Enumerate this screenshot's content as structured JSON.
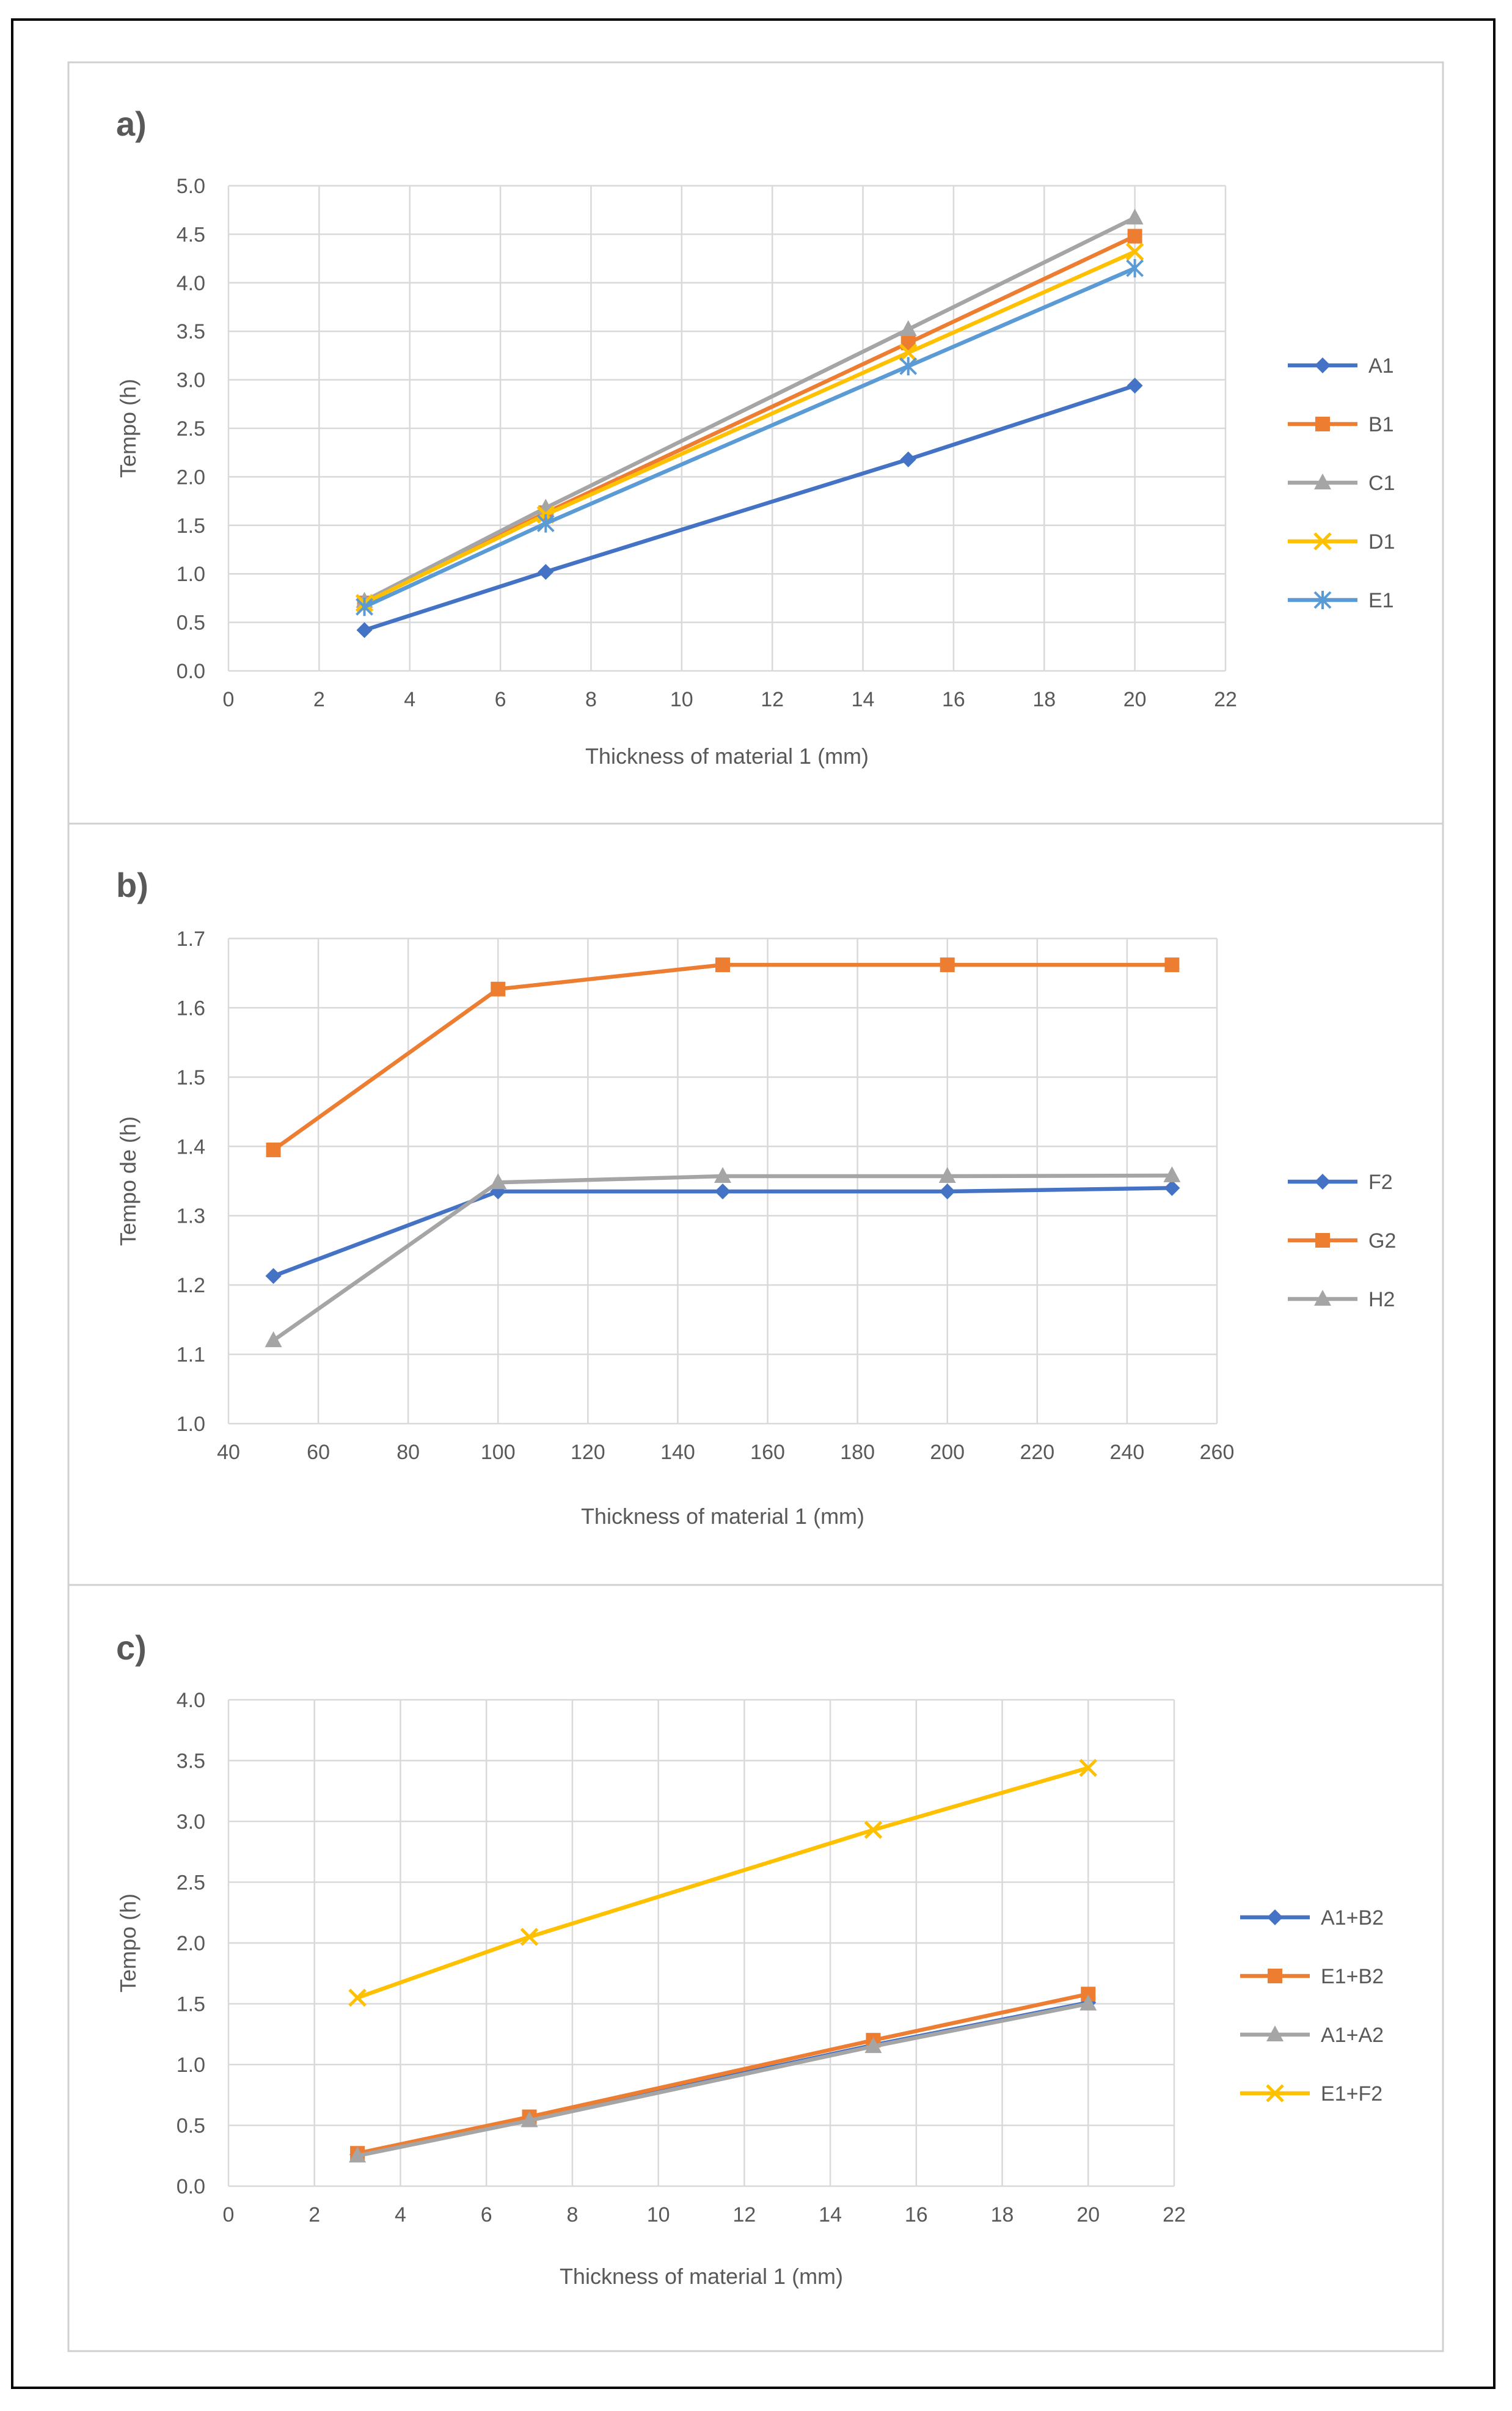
{
  "chart_data": [
    {
      "panel": "a)",
      "type": "line",
      "title": "",
      "xlabel": "Thickness of material 1 (mm)",
      "ylabel": "Tempo (h)",
      "xlim": [
        0,
        22
      ],
      "ylim": [
        0,
        5
      ],
      "xticks": [
        0,
        2,
        4,
        6,
        8,
        10,
        12,
        14,
        16,
        18,
        20,
        22
      ],
      "yticks": [
        0.0,
        0.5,
        1.0,
        1.5,
        2.0,
        2.5,
        3.0,
        3.5,
        4.0,
        4.5,
        5.0
      ],
      "ytick_decimals": 1,
      "grid": true,
      "legend": "right",
      "x": [
        3,
        7,
        15,
        20
      ],
      "series": [
        {
          "name": "A1",
          "color": "#4472C4",
          "marker": "diamond",
          "values": [
            0.42,
            1.02,
            2.18,
            2.94
          ]
        },
        {
          "name": "B1",
          "color": "#ED7D31",
          "marker": "square",
          "values": [
            0.7,
            1.63,
            3.38,
            4.48
          ]
        },
        {
          "name": "C1",
          "color": "#A5A5A5",
          "marker": "triangle",
          "values": [
            0.72,
            1.68,
            3.52,
            4.67
          ]
        },
        {
          "name": "D1",
          "color": "#FFC000",
          "marker": "x",
          "values": [
            0.7,
            1.61,
            3.28,
            4.32
          ]
        },
        {
          "name": "E1",
          "color": "#5B9BD5",
          "marker": "star",
          "values": [
            0.66,
            1.52,
            3.14,
            4.15
          ]
        }
      ]
    },
    {
      "panel": "b)",
      "type": "line",
      "title": "",
      "xlabel": "Thickness of material 1  (mm)",
      "ylabel": "Tempo de  (h)",
      "xlim": [
        40,
        260
      ],
      "ylim": [
        1.0,
        1.7
      ],
      "xticks": [
        40,
        60,
        80,
        100,
        120,
        140,
        160,
        180,
        200,
        220,
        240,
        260
      ],
      "yticks": [
        1.0,
        1.1,
        1.2,
        1.3,
        1.4,
        1.5,
        1.6,
        1.7
      ],
      "ytick_decimals": 1,
      "grid": true,
      "legend": "right",
      "x": [
        50,
        100,
        150,
        200,
        250
      ],
      "series": [
        {
          "name": "F2",
          "color": "#4472C4",
          "marker": "diamond",
          "values": [
            1.213,
            1.335,
            1.335,
            1.335,
            1.34
          ]
        },
        {
          "name": "G2",
          "color": "#ED7D31",
          "marker": "square",
          "values": [
            1.395,
            1.627,
            1.662,
            1.662,
            1.662
          ]
        },
        {
          "name": "H2",
          "color": "#A5A5A5",
          "marker": "triangle",
          "values": [
            1.12,
            1.348,
            1.357,
            1.357,
            1.358
          ]
        }
      ]
    },
    {
      "panel": "c)",
      "type": "line",
      "title": "",
      "xlabel": "Thickness of material 1 (mm)",
      "ylabel": "Tempo (h)",
      "xlim": [
        0,
        22
      ],
      "ylim": [
        0,
        4
      ],
      "xticks": [
        0,
        2,
        4,
        6,
        8,
        10,
        12,
        14,
        16,
        18,
        20,
        22
      ],
      "yticks": [
        0.0,
        0.5,
        1.0,
        1.5,
        2.0,
        2.5,
        3.0,
        3.5,
        4.0
      ],
      "ytick_decimals": 1,
      "grid": true,
      "legend": "right",
      "x": [
        3,
        7,
        15,
        20
      ],
      "series": [
        {
          "name": "A1+B2",
          "color": "#4472C4",
          "marker": "diamond",
          "values": [
            0.26,
            0.55,
            1.16,
            1.51
          ]
        },
        {
          "name": "E1+B2",
          "color": "#ED7D31",
          "marker": "square",
          "values": [
            0.27,
            0.57,
            1.2,
            1.58
          ]
        },
        {
          "name": "A1+A2",
          "color": "#A5A5A5",
          "marker": "triangle",
          "values": [
            0.25,
            0.54,
            1.15,
            1.5
          ]
        },
        {
          "name": "E1+F2",
          "color": "#FFC000",
          "marker": "x",
          "values": [
            1.55,
            2.05,
            2.93,
            3.44
          ]
        }
      ]
    }
  ]
}
